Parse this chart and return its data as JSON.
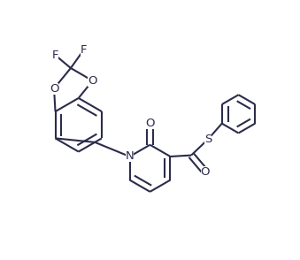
{
  "bg_color": "#ffffff",
  "line_color": "#2b2b4b",
  "line_width": 1.5,
  "dbo": 0.011,
  "font_size_atom": 9.5,
  "fig_width": 3.39,
  "fig_height": 2.94,
  "dpi": 100,
  "xlim": [
    0.0,
    1.0
  ],
  "ylim": [
    0.0,
    1.0
  ]
}
